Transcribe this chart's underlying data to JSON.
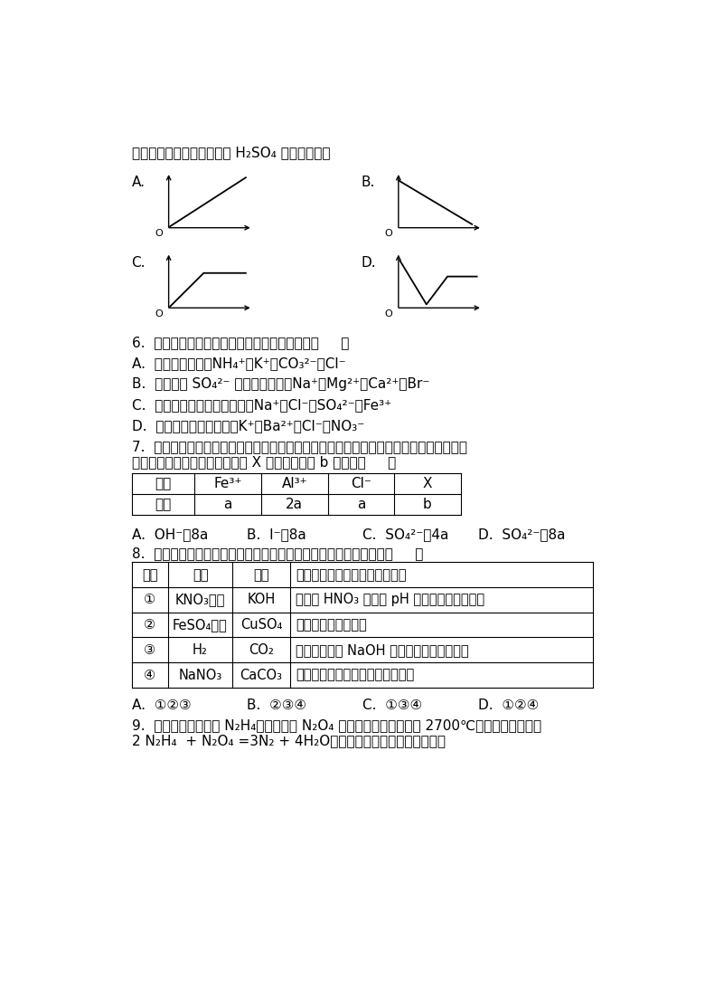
{
  "background_color": "#ffffff",
  "top_text": "的导电性，横坐标为加入的 H₂SO₄ 溶液的体积）",
  "q6_text": "6.  下列各组离子在给定条件下能大量共存的是（     ）",
  "q6_A": "A.  在酸性溶液中：NH₄⁺、K⁺、CO₃²⁻、Cl⁻",
  "q6_B": "B.  含有大量 SO₄²⁻ 存在的溶液中：Na⁺、Mg²⁺、Ca²⁺、Br⁻",
  "q6_C": "C.  使酚酞溶液变红的溶液中：Na⁺、Cl⁻、SO₄²⁻、Fe³⁺",
  "q6_D": "D.  无色透明的水溶液中：K⁺、Ba²⁺、Cl⁻、NO₃⁻",
  "q7_text1": "7.  已知在同一溶液中，阴离子所带负电荷之和等于阳离子所带正电荷之和。某溶液中，只",
  "q7_text2": "含有表中所示的四种离子，推测 X 离子及其个数 b 可能为（     ）",
  "q7_h1": "离子",
  "q7_h2": "Fe³⁺",
  "q7_h3": "Al³⁺",
  "q7_h4": "Cl⁻",
  "q7_h5": "X",
  "q7_r1": "个数",
  "q7_r2": "a",
  "q7_r3": "2a",
  "q7_r4": "a",
  "q7_r5": "b",
  "q7_A": "A.  OH⁻、8a",
  "q7_B": "B.  I⁻、8a",
  "q7_C": "C.  SO₄²⁻、4a",
  "q7_D": "D.  SO₄²⁻、8a",
  "q8_text": "8.  为除去某物质中所含的杂质，所选用的试剂或操作方法正确的是（     ）",
  "q8_h1": "序号",
  "q8_h2": "物质",
  "q8_h3": "杂质",
  "q8_h4": "除杂质应选用的试剂或操作方法",
  "q8_r1c1": "①",
  "q8_r1c2": "KNO₃溶液",
  "q8_r1c3": "KOH",
  "q8_r1c4": "滴入稀 HNO₃ 同时用 pH 计测定至溶液呈中性",
  "q8_r2c1": "②",
  "q8_r2c2": "FeSO₄溶液",
  "q8_r2c3": "CuSO₄",
  "q8_r2c4": "加入过量铁粉并过滤",
  "q8_r3c1": "③",
  "q8_r3c2": "H₂",
  "q8_r3c3": "CO₂",
  "q8_r3c4": "依次通过盛有 NaOH 溶液和浓硫酸的洗气瓶",
  "q8_r4c1": "④",
  "q8_r4c2": "NaNO₃",
  "q8_r4c3": "CaCO₃",
  "q8_r4c4": "加稀盐酸溶解、过滤、蒸发、结晶",
  "q8_A": "A.  ①②③",
  "q8_B": "B.  ②③④",
  "q8_C": "C.  ①③④",
  "q8_D": "D.  ①②④",
  "q9_text1": "9.  阿波罗宇宙飞船以 N₂H₄（联氨）和 N₂O₄ 为动力源，反应温度达 2700℃。反应方程式为：",
  "q9_text2": "2 N₂H₄  + N₂O₄ =3N₂ + 4H₂O，关于该反应的说法中正确的是"
}
